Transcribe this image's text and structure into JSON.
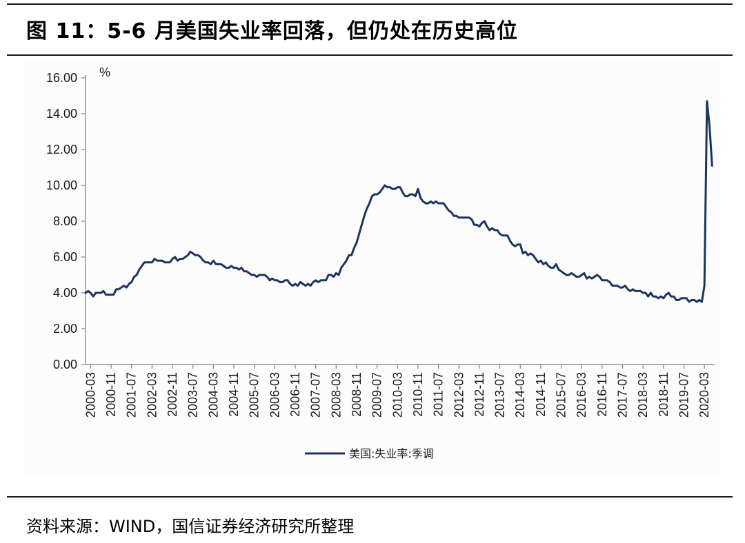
{
  "header": {
    "title": "图 11：5-6 月美国失业率回落，但仍处在历史高位"
  },
  "footer": {
    "source": "资料来源：WIND，国信证券经济研究所整理"
  },
  "chart_data": {
    "type": "line",
    "unit_label": "%",
    "ylim": [
      0,
      16
    ],
    "y_ticks": [
      "0.00",
      "2.00",
      "4.00",
      "6.00",
      "8.00",
      "10.00",
      "12.00",
      "14.00",
      "16.00"
    ],
    "x_tick_labels": [
      "2000-03",
      "2000-11",
      "2001-07",
      "2002-03",
      "2002-11",
      "2003-07",
      "2004-03",
      "2004-11",
      "2005-07",
      "2006-03",
      "2006-11",
      "2007-07",
      "2008-03",
      "2008-11",
      "2009-07",
      "2010-03",
      "2010-11",
      "2011-07",
      "2012-03",
      "2012-11",
      "2013-07",
      "2014-03",
      "2014-11",
      "2015-07",
      "2016-03",
      "2016-11",
      "2017-07",
      "2018-03",
      "2018-11",
      "2019-07",
      "2020-03"
    ],
    "x_start": "2000-01",
    "x_end": "2020-06",
    "grid": false,
    "legend_position": "bottom",
    "line_color": "#1b355e",
    "series": [
      {
        "name": "美国:失业率:季调",
        "values": [
          4.0,
          4.1,
          4.0,
          3.8,
          4.0,
          4.0,
          4.0,
          4.1,
          3.9,
          3.9,
          3.9,
          3.9,
          4.2,
          4.2,
          4.3,
          4.4,
          4.3,
          4.5,
          4.6,
          4.9,
          5.0,
          5.3,
          5.5,
          5.7,
          5.7,
          5.7,
          5.7,
          5.9,
          5.8,
          5.8,
          5.8,
          5.7,
          5.7,
          5.7,
          5.9,
          6.0,
          5.8,
          5.9,
          5.9,
          6.0,
          6.1,
          6.3,
          6.2,
          6.1,
          6.1,
          6.0,
          5.8,
          5.7,
          5.7,
          5.6,
          5.8,
          5.6,
          5.6,
          5.6,
          5.5,
          5.4,
          5.4,
          5.5,
          5.4,
          5.4,
          5.3,
          5.4,
          5.2,
          5.2,
          5.1,
          5.0,
          5.0,
          4.9,
          5.0,
          5.0,
          5.0,
          4.9,
          4.7,
          4.8,
          4.7,
          4.7,
          4.6,
          4.6,
          4.7,
          4.7,
          4.5,
          4.4,
          4.5,
          4.4,
          4.6,
          4.5,
          4.4,
          4.5,
          4.4,
          4.6,
          4.7,
          4.6,
          4.7,
          4.7,
          4.7,
          5.0,
          5.0,
          4.9,
          5.1,
          5.0,
          5.4,
          5.6,
          5.8,
          6.1,
          6.1,
          6.5,
          6.8,
          7.3,
          7.8,
          8.3,
          8.7,
          9.0,
          9.4,
          9.5,
          9.5,
          9.6,
          9.8,
          10.0,
          9.9,
          9.9,
          9.8,
          9.8,
          9.9,
          9.9,
          9.6,
          9.4,
          9.4,
          9.5,
          9.5,
          9.4,
          9.8,
          9.3,
          9.1,
          9.0,
          9.0,
          9.1,
          9.0,
          9.1,
          9.0,
          9.0,
          9.0,
          8.8,
          8.6,
          8.5,
          8.3,
          8.3,
          8.2,
          8.2,
          8.2,
          8.2,
          8.2,
          8.1,
          7.8,
          7.8,
          7.7,
          7.9,
          8.0,
          7.7,
          7.5,
          7.6,
          7.5,
          7.5,
          7.3,
          7.2,
          7.2,
          7.2,
          6.9,
          6.7,
          6.6,
          6.7,
          6.7,
          6.2,
          6.3,
          6.1,
          6.2,
          6.1,
          5.9,
          5.7,
          5.8,
          5.6,
          5.7,
          5.5,
          5.4,
          5.4,
          5.6,
          5.3,
          5.2,
          5.1,
          5.0,
          5.0,
          5.1,
          5.0,
          4.9,
          4.9,
          5.0,
          5.1,
          4.8,
          4.9,
          4.8,
          4.9,
          5.0,
          4.9,
          4.7,
          4.7,
          4.7,
          4.6,
          4.4,
          4.4,
          4.4,
          4.3,
          4.3,
          4.4,
          4.2,
          4.1,
          4.2,
          4.1,
          4.1,
          4.1,
          4.0,
          4.0,
          3.8,
          4.0,
          3.8,
          3.8,
          3.7,
          3.8,
          3.7,
          3.9,
          4.0,
          3.8,
          3.8,
          3.6,
          3.6,
          3.7,
          3.7,
          3.7,
          3.5,
          3.6,
          3.6,
          3.5,
          3.6,
          3.5,
          4.4,
          14.7,
          13.3,
          11.1
        ]
      }
    ]
  }
}
